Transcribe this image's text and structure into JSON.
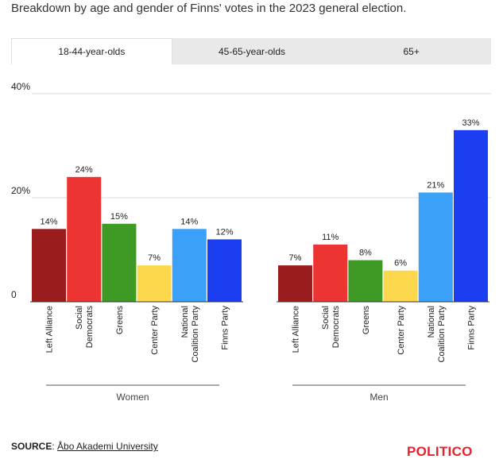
{
  "subtitle": "Breakdown by age and gender of Finns' votes in the 2023 general election.",
  "tabs": [
    {
      "label": "18-44-year-olds",
      "active": true
    },
    {
      "label": "45-65-year-olds",
      "active": false
    },
    {
      "label": "65+",
      "active": false
    }
  ],
  "chart_data": {
    "type": "bar",
    "ylim": [
      0,
      40
    ],
    "yticks": [
      {
        "value": 40,
        "label": "40%"
      },
      {
        "value": 20,
        "label": "20%"
      },
      {
        "value": 0,
        "label": "0"
      }
    ],
    "grid": true,
    "categories": [
      "Left Alliance",
      "Social Democrats",
      "Greens",
      "Center Party",
      "National Coalition Party",
      "Finns Party"
    ],
    "category_lines": [
      [
        "Left Alliance"
      ],
      [
        "Social",
        "Democrats"
      ],
      [
        "Greens"
      ],
      [
        "Center Party"
      ],
      [
        "National",
        "Coalition Party"
      ],
      [
        "Finns Party"
      ]
    ],
    "colors": [
      "#9b1c1c",
      "#ec3532",
      "#3f9a25",
      "#fed84c",
      "#3aa0f8",
      "#1b3ff0"
    ],
    "groups": [
      {
        "name": "Women",
        "values": [
          14,
          24,
          15,
          7,
          14,
          12
        ],
        "labels": [
          "14%",
          "24%",
          "15%",
          "7%",
          "14%",
          "12%"
        ]
      },
      {
        "name": "Men",
        "values": [
          7,
          11,
          8,
          6,
          21,
          33
        ],
        "labels": [
          "7%",
          "11%",
          "8%",
          "6%",
          "21%",
          "33%"
        ]
      }
    ]
  },
  "footer": {
    "source_label": "SOURCE",
    "source_text": "Åbo Akademi University",
    "logo": "POLITICO"
  }
}
